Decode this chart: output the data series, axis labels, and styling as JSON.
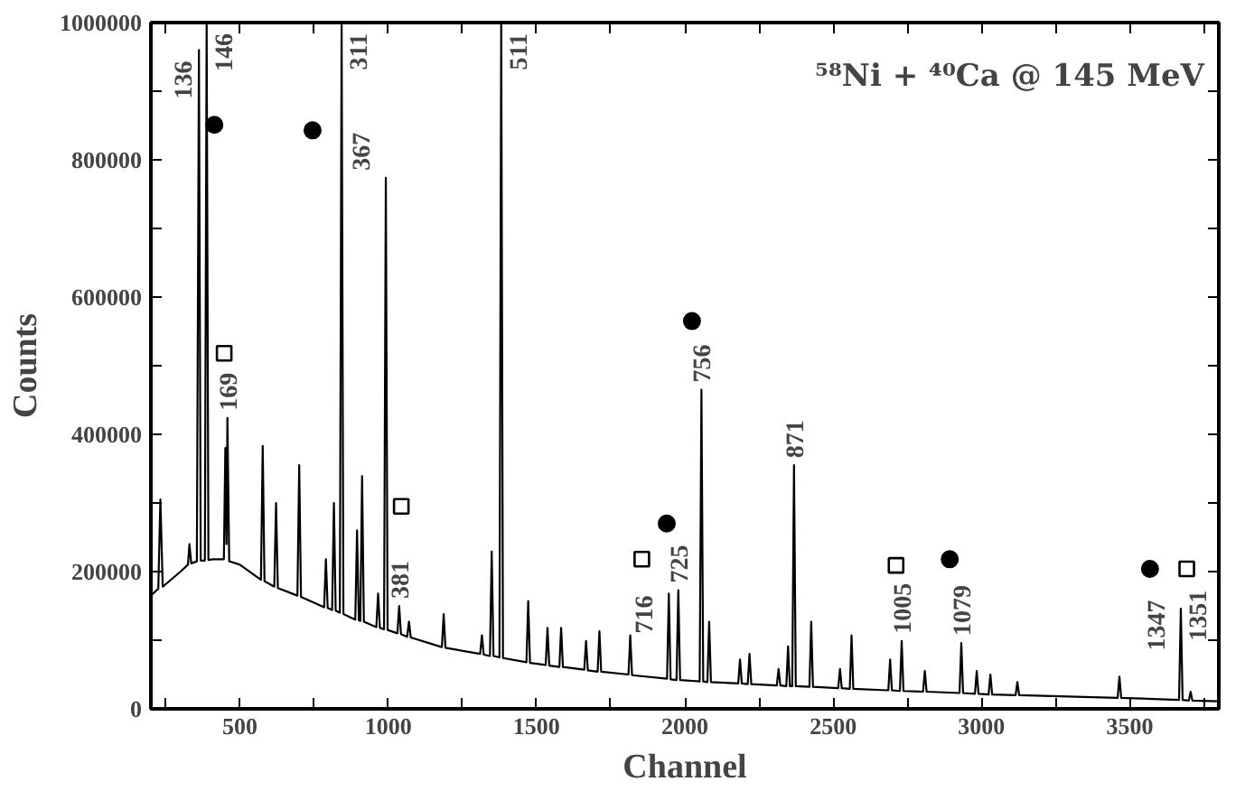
{
  "chart_data": {
    "type": "line",
    "xlabel": "Channel",
    "ylabel": "Counts",
    "xlim": [
      200,
      3800
    ],
    "ylim": [
      0,
      1000000
    ],
    "xticks": [
      {
        "value": 250,
        "label": null
      },
      500,
      {
        "value": 750,
        "label": null
      },
      1000,
      {
        "value": 1250,
        "label": null
      },
      1500,
      {
        "value": 1750,
        "label": null
      },
      2000,
      {
        "value": 2250,
        "label": null
      },
      2500,
      {
        "value": 2750,
        "label": null
      },
      3000,
      {
        "value": 3250,
        "label": null
      },
      3500,
      {
        "value": 3750,
        "label": null
      }
    ],
    "yticks": [
      0,
      {
        "value": 100000,
        "label": null
      },
      200000,
      {
        "value": 300000,
        "label": null
      },
      400000,
      {
        "value": 500000,
        "label": null
      },
      600000,
      {
        "value": 700000,
        "label": null
      },
      800000,
      {
        "value": 900000,
        "label": null
      },
      1000000
    ],
    "grid": false,
    "series": [
      {
        "type": "line",
        "color": "#000000",
        "marker": "none",
        "line_style": "solid",
        "x": [
          200,
          225,
          232,
          240,
          300,
          325,
          330,
          336,
          355,
          362,
          368,
          382,
          388,
          394,
          410,
          446,
          451,
          455,
          458,
          464,
          500,
          571,
          577,
          583,
          616,
          622,
          628,
          694,
          700,
          706,
          784,
          790,
          796,
          811,
          817,
          823,
          837,
          843,
          849,
          889,
          895,
          901,
          906,
          912,
          918,
          960,
          966,
          972,
          986,
          992,
          998,
          1031,
          1037,
          1043,
          1064,
          1070,
          1076,
          1181,
          1187,
          1193,
          1310,
          1316,
          1322,
          1343,
          1349,
          1355,
          1375,
          1381,
          1387,
          1466,
          1472,
          1478,
          1531,
          1537,
          1543,
          1577,
          1583,
          1589,
          1661,
          1667,
          1673,
          1706,
          1712,
          1718,
          1810,
          1816,
          1822,
          1940,
          1946,
          1952,
          1972,
          1978,
          1984,
          2050,
          2056,
          2062,
          2076,
          2082,
          2088,
          2180,
          2186,
          2192,
          2212,
          2218,
          2224,
          2310,
          2316,
          2322,
          2342,
          2348,
          2354,
          2362,
          2368,
          2374,
          2420,
          2426,
          2432,
          2517,
          2523,
          2529,
          2556,
          2562,
          2568,
          2686,
          2692,
          2698,
          2725,
          2731,
          2737,
          2803,
          2809,
          2815,
          2926,
          2932,
          2938,
          2978,
          2984,
          2990,
          3024,
          3030,
          3036,
          3115,
          3121,
          3127,
          3459,
          3465,
          3471,
          3666,
          3672,
          3678,
          3699,
          3705,
          3711,
          3800
        ],
        "values": [
          165000,
          175000,
          305000,
          178000,
          200000,
          210000,
          240000,
          212000,
          215000,
          960000,
          216000,
          216000,
          1000000,
          217000,
          218000,
          218000,
          380000,
          240000,
          424000,
          215000,
          210000,
          188000,
          383000,
          186000,
          178000,
          300000,
          176000,
          165000,
          355000,
          163000,
          148000,
          218000,
          147000,
          144000,
          300000,
          143000,
          140000,
          1000000,
          138000,
          130000,
          260000,
          129000,
          128000,
          339000,
          127000,
          119000,
          168000,
          118000,
          116000,
          774000,
          115000,
          110000,
          150000,
          109000,
          105000,
          127000,
          104000,
          90000,
          138000,
          89000,
          80000,
          107000,
          79000,
          77000,
          229000,
          77000,
          75000,
          1000000,
          74000,
          68000,
          157000,
          67000,
          64000,
          118000,
          63000,
          61000,
          118000,
          61000,
          57000,
          99000,
          56000,
          54000,
          113000,
          54000,
          50000,
          107000,
          49000,
          44000,
          168000,
          43000,
          42000,
          173000,
          42000,
          40000,
          465000,
          40000,
          39000,
          127000,
          39000,
          37000,
          72000,
          37000,
          36000,
          80000,
          36000,
          34000,
          58000,
          34000,
          33000,
          91000,
          33000,
          33000,
          355000,
          33000,
          32000,
          127000,
          32000,
          30000,
          58000,
          30000,
          29000,
          107000,
          29000,
          27000,
          72000,
          27000,
          26000,
          99000,
          26000,
          25000,
          55000,
          25000,
          23000,
          96000,
          23000,
          22000,
          55000,
          22000,
          21000,
          50000,
          21000,
          20000,
          39000,
          20000,
          16000,
          47000,
          16000,
          13000,
          146000,
          13000,
          12000,
          25000,
          12000,
          11000
        ]
      },
      {
        "type": "scatter",
        "color": "#000000",
        "marker": "circle",
        "x": [
          414,
          745,
          2024,
          1939,
          2893,
          3568
        ],
        "values": [
          851000,
          843000,
          565000,
          270000,
          218000,
          204000
        ]
      },
      {
        "type": "scatter",
        "color": "#000000",
        "marker": "square",
        "x": [
          447,
          1044,
          1855,
          2712,
          3692
        ],
        "values": [
          518000,
          295000,
          218000,
          209000,
          204000
        ]
      }
    ],
    "annotations": [
      "⁵⁸Ni + ⁴⁰Ca @ 145 MeV",
      {
        "text": "136",
        "x": 362,
        "y": 960000
      },
      {
        "text": "146",
        "x": 388,
        "y": 1000000
      },
      {
        "text": "311",
        "x": 843,
        "y": 1000000
      },
      {
        "text": "367",
        "x": 992,
        "y": 774000
      },
      {
        "text": "511",
        "x": 1381,
        "y": 1000000
      },
      {
        "text": "169",
        "x": 458,
        "y": 424000
      },
      {
        "text": "381",
        "x": 1037,
        "y": 150000
      },
      {
        "text": "716",
        "x": 1946,
        "y": 110000
      },
      {
        "text": "725",
        "x": 1978,
        "y": 173000
      },
      {
        "text": "756",
        "x": 2056,
        "y": 465000
      },
      {
        "text": "871",
        "x": 2368,
        "y": 355000
      },
      {
        "text": "1005",
        "x": 2731,
        "y": 99000
      },
      {
        "text": "1079",
        "x": 2932,
        "y": 96000
      },
      {
        "text": "1347",
        "x": 3672,
        "y": 85000
      },
      {
        "text": "1351",
        "x": 3672,
        "y": 99000
      }
    ]
  }
}
